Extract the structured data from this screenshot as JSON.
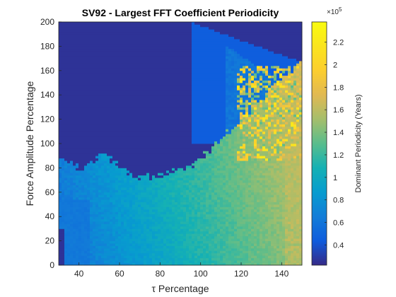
{
  "chart_data": {
    "type": "heatmap",
    "title": "SV92 - Largest FFT Coefficient Periodicity",
    "xlabel": "τ Percentage",
    "ylabel": "Force Amplitude Percentage",
    "colorbar_label": "Dominant Periodicity (Years)",
    "colorbar_exponent": "×10",
    "colorbar_exponent_power": "5",
    "colormap": "parula",
    "xlim": [
      30,
      150
    ],
    "ylim": [
      0,
      200
    ],
    "clim": [
      0.22,
      2.38
    ],
    "x_ticks": [
      40,
      60,
      80,
      100,
      120,
      140
    ],
    "y_ticks": [
      0,
      20,
      40,
      60,
      80,
      100,
      120,
      140,
      160,
      180,
      200
    ],
    "colorbar_ticks": [
      0.4,
      0.6,
      0.8,
      1,
      1.2,
      1.4,
      1.6,
      1.8,
      2,
      2.2
    ],
    "colorbar_ticks_text": [
      "0.4",
      "0.6",
      "0.8",
      "1",
      "1.2",
      "1.4",
      "1.6",
      "1.8",
      "2",
      "2.2"
    ],
    "approximate_values": {
      "note_low_region_value": 0.25,
      "low_force_region_value_range": [
        0.5,
        1.0
      ],
      "high_tau_high_force_region_value_range": [
        1.4,
        2.2
      ]
    }
  }
}
